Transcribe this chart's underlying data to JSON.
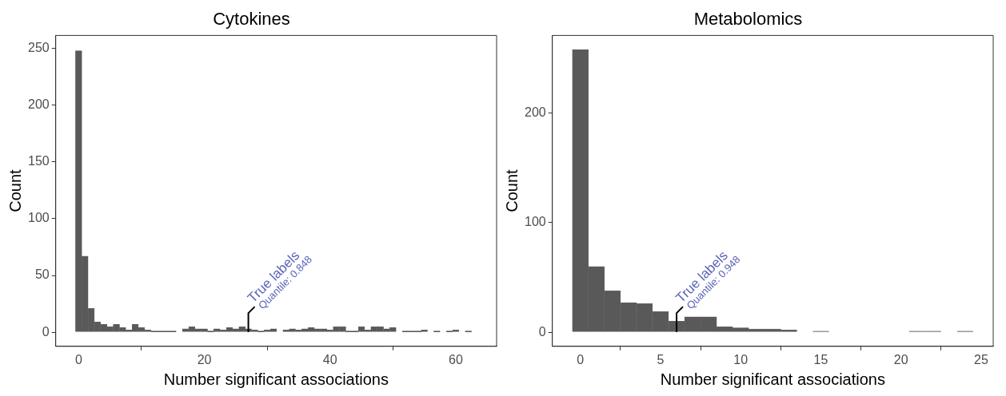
{
  "chart_data": [
    {
      "type": "histogram",
      "title": "Cytokines",
      "xlabel": "Number significant associations",
      "ylabel": "Count",
      "bins": [
        -0.5,
        0.5,
        1.5,
        2.5,
        3.5,
        4.5,
        5.5,
        6.5,
        7.5,
        8.5,
        9.5,
        10.5,
        11.5,
        12.5,
        13.5,
        14.5,
        15.5,
        16.5,
        17.5,
        18.5,
        19.5,
        20.5,
        21.5,
        22.5,
        23.5,
        24.5,
        25.5,
        26.5,
        27.5,
        28.5,
        29.5,
        30.5,
        31.5,
        32.5,
        33.5,
        34.5,
        35.5,
        36.5,
        37.5,
        38.5,
        39.5,
        40.5,
        41.5,
        42.5,
        43.5,
        44.5,
        45.5,
        46.5,
        47.5,
        48.5,
        49.5,
        50.5,
        51.5,
        52.5,
        53.5,
        54.5,
        55.5,
        56.5,
        57.5,
        58.5,
        59.5,
        60.5,
        61.5,
        62.5
      ],
      "values": [
        248,
        67,
        21,
        9,
        7,
        5,
        7,
        4,
        2,
        7,
        4,
        2,
        1,
        1,
        1,
        1,
        0,
        3,
        5,
        3,
        3,
        1,
        3,
        2,
        4,
        3,
        5,
        3,
        2,
        1,
        2,
        3,
        0,
        2,
        3,
        2,
        3,
        4,
        3,
        3,
        2,
        5,
        5,
        1,
        1,
        5,
        2,
        5,
        5,
        3,
        4,
        0,
        1,
        1,
        1,
        2,
        0,
        1,
        0,
        1,
        2,
        0,
        1
      ],
      "color": "#595959",
      "xlim": [
        -3.65,
        66.5
      ],
      "xticks": [
        0,
        20,
        40,
        60
      ],
      "ylim": [
        -12.45,
        261.45
      ],
      "yticks": [
        0,
        50,
        100,
        150,
        200,
        250
      ],
      "ref_lines": [
        {
          "axis": "x",
          "value": 27,
          "label": "True labels",
          "color": "#000000"
        }
      ],
      "annotations": [
        "Quantile: 0.848"
      ]
    },
    {
      "type": "histogram",
      "title": "Metabolomics",
      "xlabel": "Number significant associations",
      "ylabel": "Count",
      "bins": [
        -0.5,
        0.5,
        1.5,
        2.5,
        3.5,
        4.5,
        5.5,
        6.5,
        7.5,
        8.5,
        9.5,
        10.5,
        11.5,
        12.5,
        13.5,
        14.5,
        15.5,
        16.5,
        17.5,
        18.5,
        19.5,
        20.5,
        21.5,
        22.5,
        23.5,
        24.5
      ],
      "values": [
        258,
        60,
        38,
        27,
        26,
        19,
        10,
        14,
        14,
        5,
        4,
        3,
        3,
        2,
        0,
        1,
        0,
        0,
        0,
        0,
        0,
        1,
        1,
        0,
        1
      ],
      "color": "#595959",
      "xlim": [
        -1.75,
        25.75
      ],
      "xticks": [
        0,
        5,
        10,
        15,
        20,
        25
      ],
      "ylim": [
        -12.9,
        270.9
      ],
      "yticks": [
        0,
        100,
        200
      ],
      "ref_lines": [
        {
          "axis": "x",
          "value": 6,
          "label": "True labels",
          "color": "#000000"
        }
      ],
      "annotations": [
        "Quantile: 0.948"
      ]
    }
  ]
}
